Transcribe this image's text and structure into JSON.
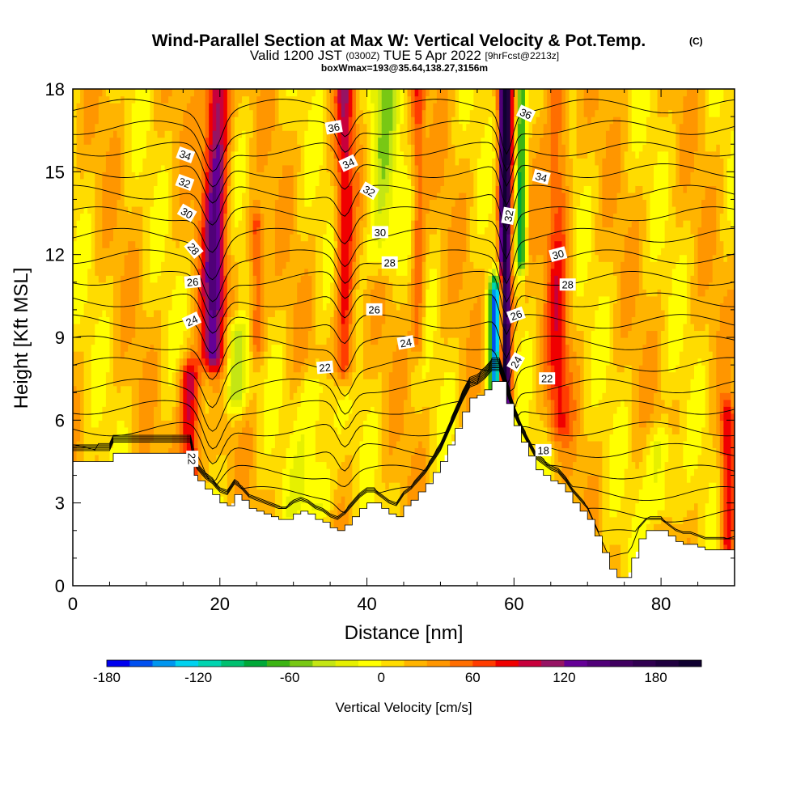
{
  "title": {
    "main": "Wind-Parallel Section at Max W: Vertical Velocity & Pot.Temp.",
    "copyright": "(C)",
    "valid_a": "Valid 1200 JST",
    "valid_zulu": "(0300Z)",
    "valid_b": "TUE 5 Apr 2022",
    "forecast": "[9hrFcst@2213z]",
    "box": "boxWmax=193@35.64,138.27,3156m"
  },
  "chart_data": {
    "type": "heatmap",
    "xlabel": "Distance [nm]",
    "ylabel": "Height [Kft MSL]",
    "xlim": [
      0,
      90
    ],
    "ylim": [
      0,
      18
    ],
    "x_ticks": [
      0,
      20,
      40,
      60,
      80
    ],
    "y_ticks": [
      0,
      3,
      6,
      9,
      12,
      15,
      18
    ],
    "x_tick_labels": [
      "0",
      "20",
      "40",
      "60",
      "80"
    ],
    "y_tick_labels": [
      "0",
      "3",
      "6",
      "9",
      "12",
      "15",
      "18"
    ],
    "grid": false,
    "colorbar": {
      "label": "Vertical Velocity [cm/s]",
      "min": -180,
      "max": 210,
      "step": 15,
      "tick_values": [
        -180,
        -120,
        -60,
        0,
        60,
        120,
        180
      ],
      "tick_labels": [
        "-180",
        "-120",
        "-60",
        "0",
        "60",
        "120",
        "180"
      ],
      "colors": [
        "#0000ee",
        "#0050f0",
        "#0096f0",
        "#00d2f0",
        "#00d4b0",
        "#00c070",
        "#00a838",
        "#3cb414",
        "#78c814",
        "#c4e614",
        "#e6f000",
        "#ffff00",
        "#ffdc00",
        "#ffb400",
        "#ff9600",
        "#ff6e00",
        "#ff3c00",
        "#f00000",
        "#c8003c",
        "#961464",
        "#640096",
        "#500078",
        "#400060",
        "#300050",
        "#200040",
        "#100030"
      ]
    },
    "terrain": [
      [
        0,
        4.5
      ],
      [
        5,
        4.5
      ],
      [
        5.5,
        4.8
      ],
      [
        16,
        4.8
      ],
      [
        16.5,
        4.0
      ],
      [
        17,
        3.8
      ],
      [
        18,
        3.5
      ],
      [
        19,
        3.3
      ],
      [
        20,
        3.0
      ],
      [
        21,
        2.9
      ],
      [
        22,
        3.3
      ],
      [
        23,
        3.1
      ],
      [
        24,
        2.8
      ],
      [
        25,
        2.7
      ],
      [
        26,
        2.6
      ],
      [
        27,
        2.5
      ],
      [
        28,
        2.4
      ],
      [
        29,
        2.4
      ],
      [
        30,
        2.6
      ],
      [
        31,
        2.7
      ],
      [
        32,
        2.6
      ],
      [
        33,
        2.4
      ],
      [
        34,
        2.3
      ],
      [
        35,
        2.1
      ],
      [
        36,
        2.0
      ],
      [
        37,
        2.2
      ],
      [
        38,
        2.5
      ],
      [
        39,
        2.8
      ],
      [
        40,
        3.0
      ],
      [
        41,
        3.0
      ],
      [
        42,
        2.8
      ],
      [
        43,
        2.6
      ],
      [
        44,
        2.5
      ],
      [
        45,
        2.9
      ],
      [
        46,
        3.1
      ],
      [
        47,
        3.4
      ],
      [
        48,
        3.7
      ],
      [
        49,
        4.1
      ],
      [
        50,
        4.5
      ],
      [
        51,
        5.1
      ],
      [
        52,
        5.7
      ],
      [
        53,
        6.3
      ],
      [
        54,
        6.8
      ],
      [
        55,
        6.9
      ],
      [
        56,
        7.1
      ],
      [
        57,
        7.4
      ],
      [
        58,
        7.4
      ],
      [
        59,
        6.6
      ],
      [
        60,
        5.8
      ],
      [
        61,
        5.2
      ],
      [
        62,
        4.7
      ],
      [
        63,
        4.2
      ],
      [
        64,
        4.0
      ],
      [
        65,
        3.8
      ],
      [
        66,
        3.7
      ],
      [
        67,
        3.4
      ],
      [
        68,
        3.0
      ],
      [
        69,
        2.7
      ],
      [
        70,
        2.4
      ],
      [
        71,
        1.8
      ],
      [
        72,
        1.2
      ],
      [
        73,
        0.6
      ],
      [
        74,
        0.3
      ],
      [
        75,
        0.3
      ],
      [
        76,
        1.0
      ],
      [
        77,
        1.7
      ],
      [
        78,
        2.0
      ],
      [
        79,
        2.0
      ],
      [
        80,
        2.0
      ],
      [
        81,
        1.8
      ],
      [
        82,
        1.6
      ],
      [
        83,
        1.5
      ],
      [
        84,
        1.5
      ],
      [
        85,
        1.4
      ],
      [
        86,
        1.3
      ],
      [
        87,
        1.3
      ],
      [
        88,
        1.3
      ],
      [
        89,
        1.3
      ],
      [
        90,
        1.3
      ]
    ],
    "updrafts": [
      {
        "x": 16.0,
        "y0": 4.0,
        "y1": 7.5,
        "halfwidth": 1.4,
        "amp": 95,
        "lean": 0.0
      },
      {
        "x": 19.0,
        "y0": 8.5,
        "y1": 18.0,
        "halfwidth": 1.6,
        "amp": 115,
        "lean": 0.08
      },
      {
        "x": 25.0,
        "y0": 9.0,
        "y1": 13.0,
        "halfwidth": 1.0,
        "amp": 60,
        "lean": 0.0
      },
      {
        "x": 37.0,
        "y0": 8.0,
        "y1": 18.0,
        "halfwidth": 1.2,
        "amp": 75,
        "lean": 0.0
      },
      {
        "x": 47.0,
        "y0": 9.0,
        "y1": 18.0,
        "halfwidth": 0.9,
        "amp": 50,
        "lean": 0.0
      },
      {
        "x": 58.8,
        "y0": 7.0,
        "y1": 18.0,
        "halfwidth": 0.8,
        "amp": 210,
        "lean": 0.0
      },
      {
        "x": 66.0,
        "y0": 6.0,
        "y1": 18.0,
        "halfwidth": 1.5,
        "amp": 55,
        "lean": 0.0
      },
      {
        "x": 89.0,
        "y0": 1.5,
        "y1": 6.0,
        "halfwidth": 1.0,
        "amp": 70,
        "lean": 0.0
      }
    ],
    "downdrafts": [
      {
        "x": 22.0,
        "y0": 7.0,
        "y1": 9.0,
        "halfwidth": 1.6,
        "amp": -65,
        "lean": 0.0
      },
      {
        "x": 42.0,
        "y0": 12.0,
        "y1": 18.0,
        "halfwidth": 2.0,
        "amp": -50,
        "lean": 0.0
      },
      {
        "x": 57.5,
        "y0": 7.2,
        "y1": 10.5,
        "halfwidth": 0.9,
        "amp": -175,
        "lean": 0.0
      },
      {
        "x": 61.0,
        "y0": 12.0,
        "y1": 18.0,
        "halfwidth": 0.7,
        "amp": -110,
        "lean": 0.0
      },
      {
        "x": 80.0,
        "y0": 3.0,
        "y1": 5.0,
        "halfwidth": 2.0,
        "amp": -45,
        "lean": 0.0
      },
      {
        "x": 33.0,
        "y0": 3.0,
        "y1": 7.0,
        "halfwidth": 2.5,
        "amp": -40,
        "lean": 0.0
      }
    ],
    "theta_levels": [
      16,
      17,
      18,
      19,
      20,
      21,
      22,
      23,
      24,
      25,
      26,
      27,
      28,
      29,
      30,
      31,
      32,
      33,
      34,
      35,
      36,
      37
    ],
    "contour_labels": [
      {
        "text": "36",
        "x": 35.5,
        "y": 16.6,
        "angle": -10
      },
      {
        "text": "34",
        "x": 15.3,
        "y": 15.6,
        "angle": 20
      },
      {
        "text": "32",
        "x": 15.2,
        "y": 14.6,
        "angle": 20
      },
      {
        "text": "30",
        "x": 15.5,
        "y": 13.5,
        "angle": 30
      },
      {
        "text": "28",
        "x": 16.4,
        "y": 12.2,
        "angle": 50
      },
      {
        "text": "26",
        "x": 16.3,
        "y": 11.0,
        "angle": -5
      },
      {
        "text": "24",
        "x": 16.2,
        "y": 9.6,
        "angle": -25
      },
      {
        "text": "22",
        "x": 16.2,
        "y": 4.6,
        "angle": 90
      },
      {
        "text": "34",
        "x": 37.5,
        "y": 15.3,
        "angle": -25
      },
      {
        "text": "32",
        "x": 40.3,
        "y": 14.3,
        "angle": 30
      },
      {
        "text": "30",
        "x": 41.8,
        "y": 12.8,
        "angle": 0
      },
      {
        "text": "28",
        "x": 43.1,
        "y": 11.7,
        "angle": 0
      },
      {
        "text": "26",
        "x": 41.0,
        "y": 10.0,
        "angle": 0
      },
      {
        "text": "24",
        "x": 45.3,
        "y": 8.8,
        "angle": -10
      },
      {
        "text": "22",
        "x": 34.3,
        "y": 7.9,
        "angle": -5
      },
      {
        "text": "36",
        "x": 61.6,
        "y": 17.1,
        "angle": 25
      },
      {
        "text": "34",
        "x": 63.7,
        "y": 14.8,
        "angle": 15
      },
      {
        "text": "32",
        "x": 59.3,
        "y": 13.4,
        "angle": -80
      },
      {
        "text": "30",
        "x": 66.0,
        "y": 12.0,
        "angle": -15
      },
      {
        "text": "28",
        "x": 67.3,
        "y": 10.9,
        "angle": 0
      },
      {
        "text": "26",
        "x": 60.3,
        "y": 9.8,
        "angle": -20
      },
      {
        "text": "24",
        "x": 60.3,
        "y": 8.1,
        "angle": -60
      },
      {
        "text": "22",
        "x": 64.5,
        "y": 7.5,
        "angle": 0
      },
      {
        "text": "18",
        "x": 64.0,
        "y": 4.9,
        "angle": 0
      }
    ]
  }
}
